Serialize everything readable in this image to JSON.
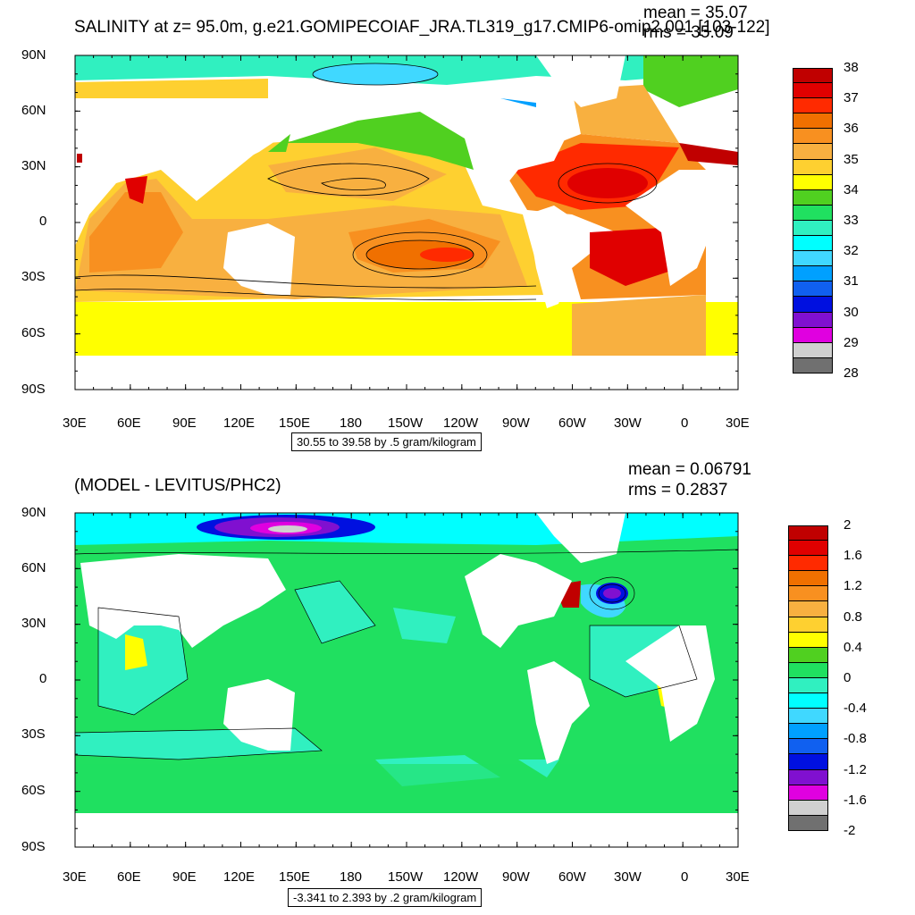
{
  "panels": [
    {
      "title": "SALINITY at z=  95.0m, g.e21.GOMIPECOIAF_JRA.TL319_g17.CMIP6-omip2.001 [103-122]",
      "mean": "mean = 35.07",
      "rms": "rms = 35.09",
      "info": "30.55 to 39.58 by .5 gram/kilogram",
      "lat_labels": [
        "90N",
        "60N",
        "30N",
        "0",
        "30S",
        "60S",
        "90S"
      ],
      "lon_labels": [
        "30E",
        "60E",
        "90E",
        "120E",
        "150E",
        "180",
        "150W",
        "120W",
        "90W",
        "60W",
        "30W",
        "0",
        "30E"
      ],
      "colorbar": {
        "labels": [
          "38",
          "37",
          "36",
          "35",
          "34",
          "33",
          "32",
          "31",
          "30",
          "29",
          "28"
        ],
        "colors": [
          "#c00000",
          "#e00000",
          "#ff2a00",
          "#f07000",
          "#f89020",
          "#f8b040",
          "#fed030",
          "#ffff00",
          "#50d020",
          "#20e060",
          "#30f0c0",
          "#00ffff",
          "#40d8ff",
          "#00a0ff",
          "#1060f0",
          "#0010e0",
          "#8010d0",
          "#e000e0",
          "#d0d0d0",
          "#707070"
        ]
      }
    },
    {
      "title": "(MODEL - LEVITUS/PHC2)",
      "mean": "mean = 0.06791",
      "rms": "rms = 0.2837",
      "info": "-3.341 to 2.393 by .2 gram/kilogram",
      "lat_labels": [
        "90N",
        "60N",
        "30N",
        "0",
        "30S",
        "60S",
        "90S"
      ],
      "lon_labels": [
        "30E",
        "60E",
        "90E",
        "120E",
        "150E",
        "180",
        "150W",
        "120W",
        "90W",
        "60W",
        "30W",
        "0",
        "30E"
      ],
      "colorbar": {
        "labels": [
          "2",
          "1.6",
          "1.2",
          "0.8",
          "0.4",
          "0",
          "-0.4",
          "-0.8",
          "-1.2",
          "-1.6",
          "-2"
        ],
        "colors": [
          "#c00000",
          "#e00000",
          "#ff2a00",
          "#f07000",
          "#f89020",
          "#f8b040",
          "#fed030",
          "#ffff00",
          "#50d020",
          "#20e060",
          "#30f0c0",
          "#00ffff",
          "#40d8ff",
          "#00a0ff",
          "#1060f0",
          "#0010e0",
          "#8010d0",
          "#e000e0",
          "#d0d0d0",
          "#707070"
        ]
      }
    }
  ]
}
